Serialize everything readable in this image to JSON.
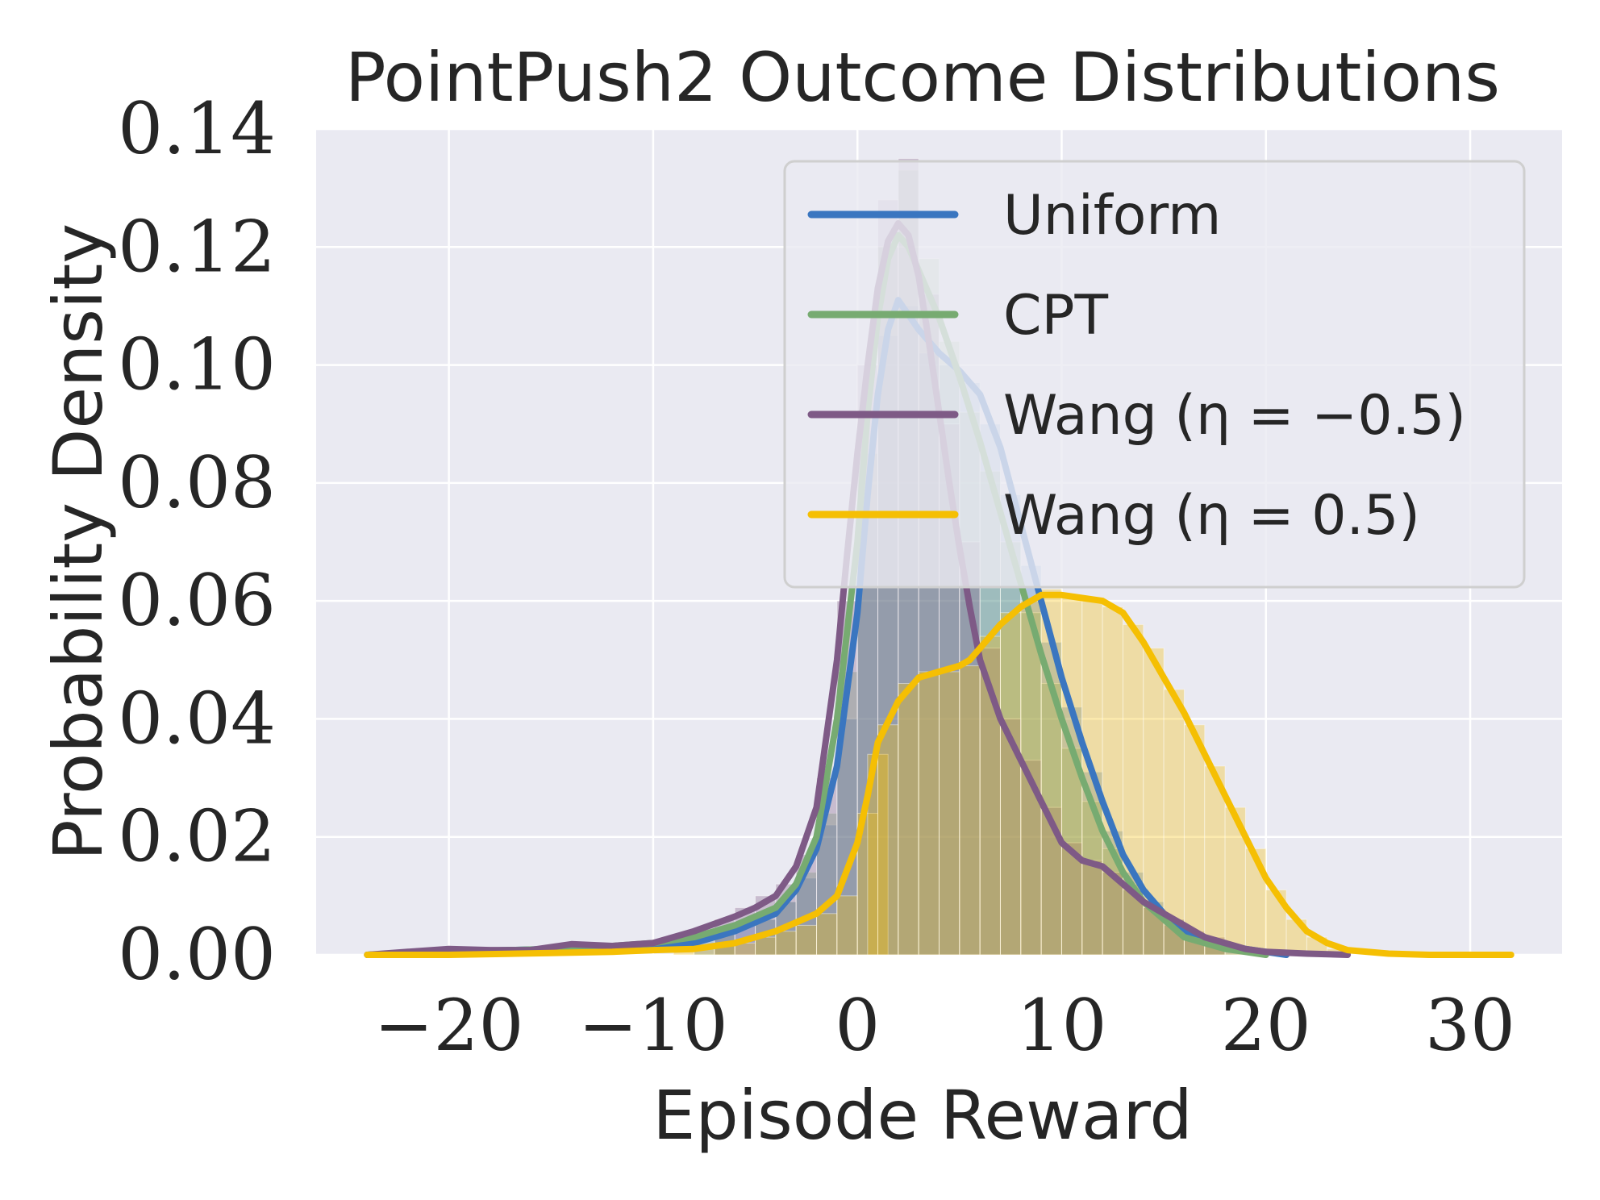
{
  "chart_data": {
    "type": "histogram+kde",
    "title": "PointPush2 Outcome Distributions",
    "xlabel": "Episode Reward",
    "ylabel": "Probability Density",
    "xlim": [
      -26.5,
      34.5
    ],
    "ylim": [
      0,
      0.14
    ],
    "xticks": [
      -20,
      -10,
      0,
      10,
      20,
      30
    ],
    "xtick_labels": [
      "−20",
      "−10",
      "0",
      "10",
      "20",
      "30"
    ],
    "yticks": [
      0,
      0.02,
      0.04,
      0.06,
      0.08,
      0.1,
      0.12,
      0.14
    ],
    "ytick_labels": [
      "0.00",
      "0.02",
      "0.04",
      "0.06",
      "0.08",
      "0.10",
      "0.12",
      "0.14"
    ],
    "grid": true,
    "legend_position": "top-right",
    "background": "#eaeaf2",
    "series": [
      {
        "name": "Uniform",
        "color": "#3a76c0",
        "kde": [
          [
            -24,
            0
          ],
          [
            -20,
            0.0005
          ],
          [
            -15,
            0.001
          ],
          [
            -10,
            0.0015
          ],
          [
            -8,
            0.002
          ],
          [
            -6,
            0.004
          ],
          [
            -4,
            0.007
          ],
          [
            -3,
            0.011
          ],
          [
            -2,
            0.018
          ],
          [
            -1,
            0.032
          ],
          [
            0,
            0.058
          ],
          [
            0.5,
            0.078
          ],
          [
            1,
            0.095
          ],
          [
            1.5,
            0.106
          ],
          [
            2,
            0.111
          ],
          [
            3,
            0.106
          ],
          [
            4,
            0.102
          ],
          [
            5,
            0.099
          ],
          [
            6,
            0.095
          ],
          [
            7,
            0.086
          ],
          [
            8,
            0.073
          ],
          [
            9,
            0.06
          ],
          [
            10,
            0.047
          ],
          [
            11,
            0.036
          ],
          [
            12,
            0.026
          ],
          [
            13,
            0.017
          ],
          [
            14,
            0.011
          ],
          [
            15,
            0.007
          ],
          [
            16,
            0.004
          ],
          [
            17,
            0.0025
          ],
          [
            18,
            0.0015
          ],
          [
            19,
            0.001
          ],
          [
            20,
            0.0005
          ],
          [
            21,
            0
          ]
        ],
        "hist_bins": [
          [
            -8,
            0.003
          ],
          [
            -7,
            0.004
          ],
          [
            -6,
            0.005
          ],
          [
            -5,
            0.006
          ],
          [
            -4,
            0.009
          ],
          [
            -3,
            0.013
          ],
          [
            -2,
            0.022
          ],
          [
            -1,
            0.04
          ],
          [
            0,
            0.075
          ],
          [
            1,
            0.105
          ],
          [
            2,
            0.11
          ],
          [
            3,
            0.102
          ],
          [
            4,
            0.1
          ],
          [
            5,
            0.097
          ],
          [
            6,
            0.09
          ],
          [
            7,
            0.078
          ],
          [
            8,
            0.066
          ],
          [
            9,
            0.053
          ],
          [
            10,
            0.042
          ],
          [
            11,
            0.031
          ],
          [
            12,
            0.021
          ],
          [
            13,
            0.014
          ],
          [
            14,
            0.009
          ],
          [
            15,
            0.006
          ],
          [
            16,
            0.003
          ],
          [
            17,
            0.002
          ],
          [
            18,
            0.001
          ],
          [
            19,
            0.001
          ]
        ]
      },
      {
        "name": "CPT",
        "color": "#77ab71",
        "kde": [
          [
            -24,
            0
          ],
          [
            -20,
            0.0005
          ],
          [
            -15,
            0.001
          ],
          [
            -12,
            0.0015
          ],
          [
            -10,
            0.002
          ],
          [
            -8,
            0.003
          ],
          [
            -6,
            0.005
          ],
          [
            -4,
            0.008
          ],
          [
            -3,
            0.012
          ],
          [
            -2,
            0.02
          ],
          [
            -1,
            0.04
          ],
          [
            0,
            0.07
          ],
          [
            0.5,
            0.092
          ],
          [
            1,
            0.108
          ],
          [
            1.5,
            0.118
          ],
          [
            2,
            0.122
          ],
          [
            2.5,
            0.12
          ],
          [
            3,
            0.116
          ],
          [
            4,
            0.108
          ],
          [
            5,
            0.098
          ],
          [
            6,
            0.087
          ],
          [
            7,
            0.075
          ],
          [
            8,
            0.063
          ],
          [
            9,
            0.051
          ],
          [
            10,
            0.04
          ],
          [
            11,
            0.03
          ],
          [
            12,
            0.021
          ],
          [
            13,
            0.014
          ],
          [
            14,
            0.009
          ],
          [
            15,
            0.006
          ],
          [
            16,
            0.003
          ],
          [
            17,
            0.002
          ],
          [
            18,
            0.001
          ],
          [
            19,
            0.0005
          ],
          [
            20,
            0
          ]
        ],
        "hist_bins": [
          [
            -7,
            0.004
          ],
          [
            -5,
            0.006
          ],
          [
            -4,
            0.009
          ],
          [
            -3,
            0.014
          ],
          [
            -2,
            0.024
          ],
          [
            -1,
            0.048
          ],
          [
            0,
            0.085
          ],
          [
            1,
            0.12
          ],
          [
            2,
            0.133
          ],
          [
            3,
            0.118
          ],
          [
            4,
            0.104
          ],
          [
            5,
            0.092
          ],
          [
            6,
            0.082
          ],
          [
            7,
            0.07
          ],
          [
            8,
            0.058
          ],
          [
            9,
            0.046
          ],
          [
            10,
            0.035
          ],
          [
            11,
            0.026
          ],
          [
            12,
            0.018
          ],
          [
            13,
            0.012
          ],
          [
            14,
            0.008
          ],
          [
            15,
            0.005
          ],
          [
            16,
            0.003
          ],
          [
            17,
            0.002
          ]
        ]
      },
      {
        "name": "Wang (η = −0.5)",
        "color": "#7e5a86",
        "kde": [
          [
            -24,
            0
          ],
          [
            -22,
            0.0005
          ],
          [
            -20,
            0.001
          ],
          [
            -18,
            0.0008
          ],
          [
            -16,
            0.0008
          ],
          [
            -14,
            0.0018
          ],
          [
            -12,
            0.0015
          ],
          [
            -10,
            0.002
          ],
          [
            -8,
            0.004
          ],
          [
            -6,
            0.0065
          ],
          [
            -5,
            0.008
          ],
          [
            -4,
            0.01
          ],
          [
            -3,
            0.015
          ],
          [
            -2,
            0.025
          ],
          [
            -1,
            0.05
          ],
          [
            -0.5,
            0.068
          ],
          [
            0,
            0.085
          ],
          [
            0.5,
            0.1
          ],
          [
            1,
            0.113
          ],
          [
            1.5,
            0.121
          ],
          [
            2,
            0.124
          ],
          [
            2.5,
            0.122
          ],
          [
            3,
            0.115
          ],
          [
            3.5,
            0.104
          ],
          [
            4,
            0.092
          ],
          [
            4.5,
            0.08
          ],
          [
            5,
            0.069
          ],
          [
            5.5,
            0.059
          ],
          [
            6,
            0.05
          ],
          [
            7,
            0.04
          ],
          [
            8,
            0.033
          ],
          [
            9,
            0.026
          ],
          [
            10,
            0.019
          ],
          [
            11,
            0.016
          ],
          [
            12,
            0.015
          ],
          [
            13,
            0.012
          ],
          [
            14,
            0.009
          ],
          [
            15,
            0.007
          ],
          [
            16,
            0.005
          ],
          [
            17,
            0.003
          ],
          [
            18,
            0.002
          ],
          [
            19,
            0.001
          ],
          [
            20,
            0.0005
          ],
          [
            22,
            0.0002
          ],
          [
            24,
            0
          ]
        ],
        "hist_bins": [
          [
            -7,
            0.006
          ],
          [
            -6,
            0.008
          ],
          [
            -5,
            0.01
          ],
          [
            -4,
            0.012
          ],
          [
            -3,
            0.017
          ],
          [
            -2,
            0.03
          ],
          [
            -1,
            0.06
          ],
          [
            0,
            0.1
          ],
          [
            1,
            0.128
          ],
          [
            2,
            0.135
          ],
          [
            3,
            0.112
          ],
          [
            4,
            0.09
          ],
          [
            5,
            0.07
          ],
          [
            6,
            0.052
          ],
          [
            7,
            0.04
          ],
          [
            8,
            0.033
          ],
          [
            9,
            0.025
          ],
          [
            10,
            0.019
          ],
          [
            11,
            0.016
          ],
          [
            12,
            0.014
          ],
          [
            13,
            0.011
          ],
          [
            14,
            0.008
          ],
          [
            15,
            0.006
          ],
          [
            16,
            0.004
          ],
          [
            17,
            0.003
          ]
        ]
      },
      {
        "name": "Wang (η = 0.5)",
        "color": "#f5bf03",
        "kde": [
          [
            -24,
            0
          ],
          [
            -20,
            0
          ],
          [
            -15,
            0.0003
          ],
          [
            -12,
            0.0005
          ],
          [
            -10,
            0.0008
          ],
          [
            -8,
            0.001
          ],
          [
            -6,
            0.002
          ],
          [
            -5,
            0.003
          ],
          [
            -4,
            0.004
          ],
          [
            -3,
            0.0055
          ],
          [
            -2,
            0.007
          ],
          [
            -1,
            0.01
          ],
          [
            0,
            0.019
          ],
          [
            0.5,
            0.027
          ],
          [
            1,
            0.036
          ],
          [
            2,
            0.043
          ],
          [
            3,
            0.047
          ],
          [
            4,
            0.048
          ],
          [
            5,
            0.049
          ],
          [
            5.5,
            0.05
          ],
          [
            6,
            0.052
          ],
          [
            7,
            0.056
          ],
          [
            8,
            0.059
          ],
          [
            9,
            0.061
          ],
          [
            10,
            0.061
          ],
          [
            11,
            0.0605
          ],
          [
            12,
            0.06
          ],
          [
            13,
            0.058
          ],
          [
            14,
            0.053
          ],
          [
            15,
            0.047
          ],
          [
            16,
            0.041
          ],
          [
            17,
            0.034
          ],
          [
            18,
            0.027
          ],
          [
            19,
            0.02
          ],
          [
            20,
            0.013
          ],
          [
            21,
            0.008
          ],
          [
            22,
            0.004
          ],
          [
            23,
            0.002
          ],
          [
            24,
            0.0008
          ],
          [
            26,
            0.0002
          ],
          [
            28,
            0
          ],
          [
            32,
            0
          ]
        ],
        "hist_bins": [
          [
            -9,
            0.001
          ],
          [
            -8,
            0.001
          ],
          [
            -7,
            0.002
          ],
          [
            -6,
            0.002
          ],
          [
            -5,
            0.003
          ],
          [
            -4,
            0.004
          ],
          [
            -3,
            0.005
          ],
          [
            -2,
            0.007
          ],
          [
            -1,
            0.01
          ],
          [
            0,
            0.024
          ],
          [
            0.5,
            0.034
          ],
          [
            1,
            0.039
          ],
          [
            2,
            0.046
          ],
          [
            3,
            0.048
          ],
          [
            4,
            0.048
          ],
          [
            5,
            0.049
          ],
          [
            6,
            0.054
          ],
          [
            7,
            0.058
          ],
          [
            8,
            0.06
          ],
          [
            9,
            0.062
          ],
          [
            10,
            0.061
          ],
          [
            11,
            0.06
          ],
          [
            12,
            0.059
          ],
          [
            13,
            0.056
          ],
          [
            14,
            0.052
          ],
          [
            15,
            0.045
          ],
          [
            16,
            0.039
          ],
          [
            17,
            0.032
          ],
          [
            18,
            0.025
          ],
          [
            19,
            0.018
          ],
          [
            20,
            0.011
          ],
          [
            21,
            0.006
          ],
          [
            22,
            0.003
          ],
          [
            23,
            0.001
          ]
        ]
      }
    ]
  }
}
